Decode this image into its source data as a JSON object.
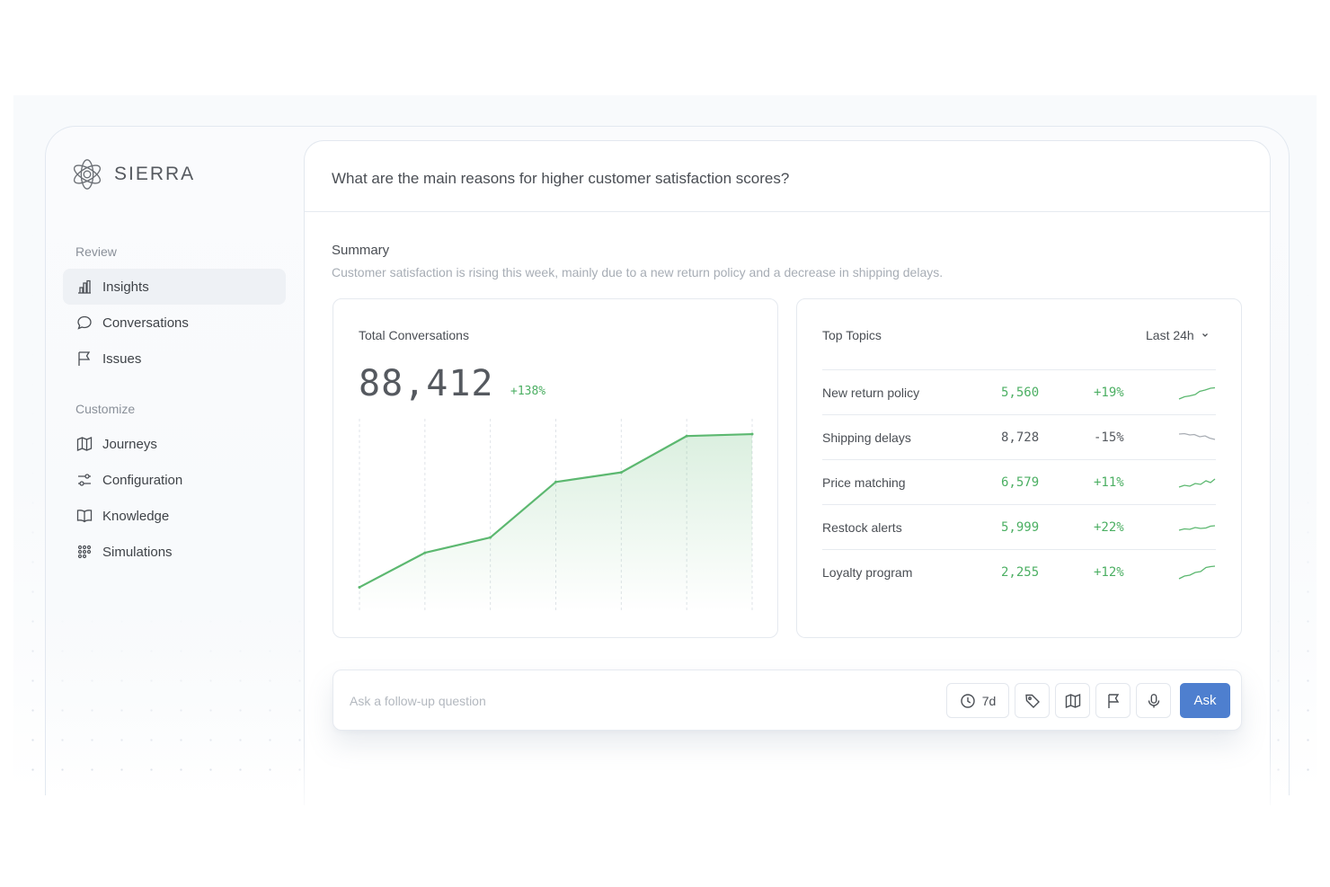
{
  "app": {
    "brand": "SIERRA"
  },
  "sidebar": {
    "sections": [
      {
        "title": "Review",
        "items": [
          {
            "label": "Insights",
            "icon": "bar-chart-icon",
            "active": true
          },
          {
            "label": "Conversations",
            "icon": "chat-bubble-icon",
            "active": false
          },
          {
            "label": "Issues",
            "icon": "flag-icon",
            "active": false
          }
        ]
      },
      {
        "title": "Customize",
        "items": [
          {
            "label": "Journeys",
            "icon": "map-icon",
            "active": false
          },
          {
            "label": "Configuration",
            "icon": "sliders-icon",
            "active": false
          },
          {
            "label": "Knowledge",
            "icon": "book-icon",
            "active": false
          },
          {
            "label": "Simulations",
            "icon": "dots-grid-icon",
            "active": false
          }
        ]
      }
    ]
  },
  "main": {
    "question": "What are the main reasons for higher customer satisfaction scores?",
    "summary": {
      "title": "Summary",
      "text": "Customer satisfaction is rising this week, mainly due to a new return policy and a decrease in shipping delays."
    },
    "total_conversations": {
      "title": "Total Conversations",
      "value": "88,412",
      "change": "+138%",
      "change_color": "#4caf63"
    },
    "top_topics": {
      "title": "Top Topics",
      "range": "Last 24h",
      "rows": [
        {
          "name": "New return policy",
          "count": "5,560",
          "change": "+19%",
          "trend": "up"
        },
        {
          "name": "Shipping delays",
          "count": "8,728",
          "change": "-15%",
          "trend": "down"
        },
        {
          "name": "Price matching",
          "count": "6,579",
          "change": "+11%",
          "trend": "up"
        },
        {
          "name": "Restock alerts",
          "count": "5,999",
          "change": "+22%",
          "trend": "up"
        },
        {
          "name": "Loyalty program",
          "count": "2,255",
          "change": "+12%",
          "trend": "up"
        }
      ]
    }
  },
  "askbar": {
    "placeholder": "Ask a follow-up question",
    "time_range": "7d",
    "tools": [
      "clock-icon",
      "tag-icon",
      "map-icon",
      "flag-icon",
      "microphone-icon"
    ],
    "submit": "Ask",
    "accent": "#4e7fcf"
  },
  "chart_data": {
    "type": "area",
    "series": [
      {
        "values": [
          12,
          30,
          38,
          67,
          72,
          91,
          92
        ]
      }
    ],
    "ylim": [
      0,
      100
    ],
    "grid": "vertical dashed",
    "color": "#5cb870"
  }
}
